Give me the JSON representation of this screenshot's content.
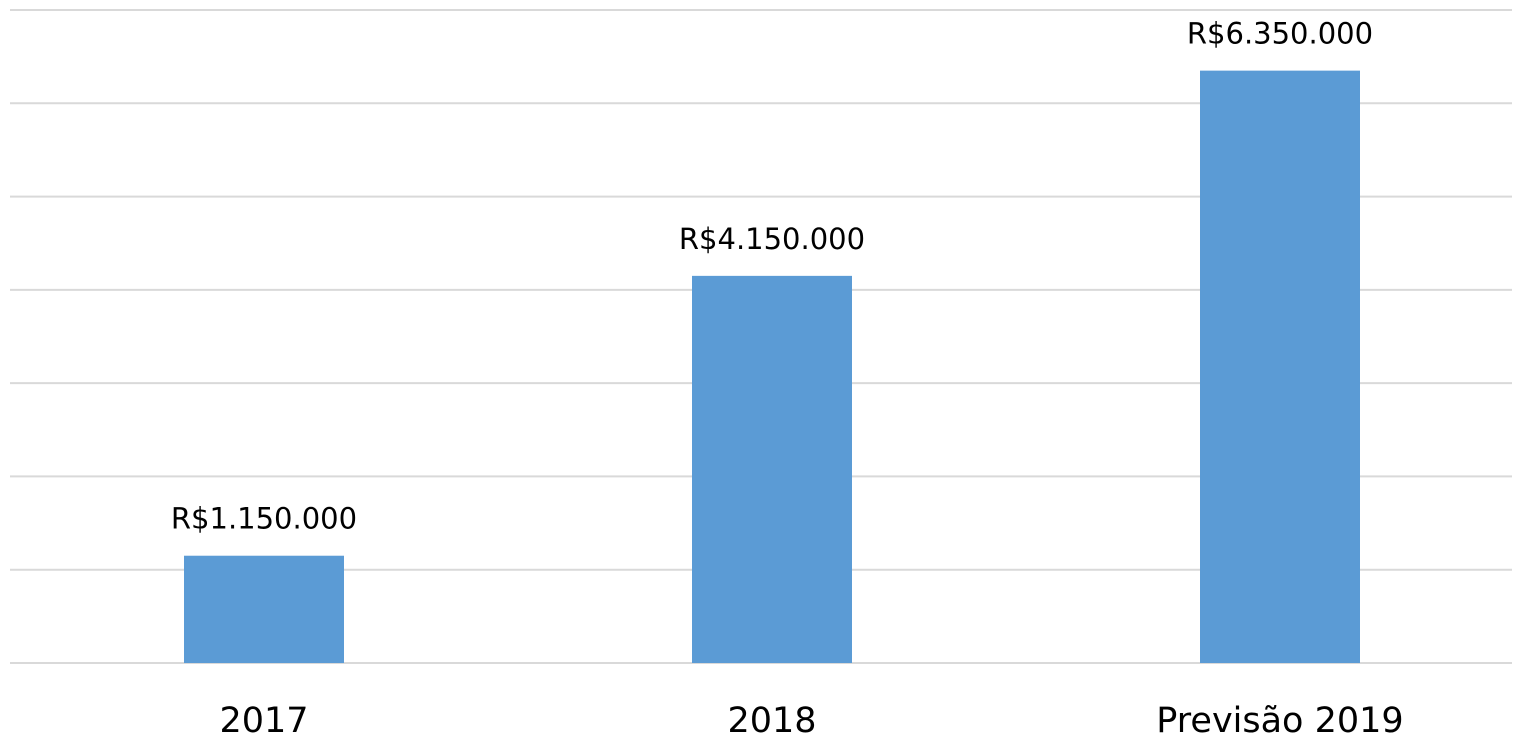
{
  "chart_data": {
    "type": "bar",
    "categories": [
      "2017",
      "2018",
      "Previsão 2019"
    ],
    "values": [
      1150000,
      4150000,
      6350000
    ],
    "value_labels": [
      "R$1.150.000",
      "R$4.150.000",
      "R$6.350.000"
    ],
    "color": "#5b9bd5",
    "ylim": [
      0,
      7000000
    ],
    "yticks": [
      0,
      1000000,
      2000000,
      3000000,
      4000000,
      5000000,
      6000000,
      7000000
    ],
    "grid": true
  }
}
